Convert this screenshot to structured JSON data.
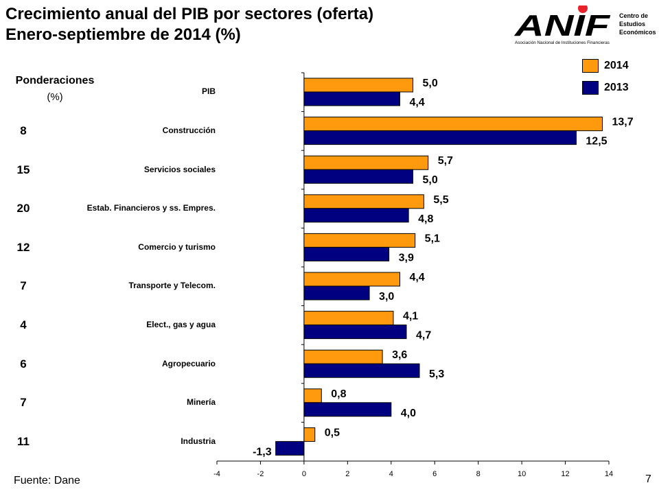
{
  "header": {
    "title_line1": "Crecimiento anual del PIB por sectores (oferta)",
    "title_line2": "Enero-septiembre de 2014 (%)"
  },
  "logo": {
    "mark": "ANIF",
    "org_line1": "Centro de",
    "org_line2": "Estudios",
    "org_line3": "Económicos",
    "org_full": "Asociación Nacional de Instituciones Financieras",
    "dot_color": "#e8212b"
  },
  "weights": {
    "header_line1": "Ponderaciones",
    "header_line2": "(%)",
    "values": [
      "",
      "8",
      "15",
      "20",
      "12",
      "7",
      "4",
      "6",
      "7",
      "11"
    ]
  },
  "footer": {
    "source": "Fuente: Dane",
    "page_number": "7"
  },
  "chart_data": {
    "type": "bar",
    "orientation": "horizontal",
    "categories": [
      "PIB",
      "Construcción",
      "Servicios sociales",
      "Estab. Financieros y ss. Empres.",
      "Comercio y turismo",
      "Transporte y Telecom.",
      "Elect., gas y agua",
      "Agropecuario",
      "Minería",
      "Industria"
    ],
    "series": [
      {
        "name": "2014",
        "color": "#ff9a0f",
        "values": [
          5.0,
          13.7,
          5.7,
          5.5,
          5.1,
          4.4,
          4.1,
          3.6,
          0.8,
          0.5
        ],
        "labels": [
          "5,0",
          "13,7",
          "5,7",
          "5,5",
          "5,1",
          "4,4",
          "4,1",
          "3,6",
          "0,8",
          "0,5"
        ]
      },
      {
        "name": "2013",
        "color": "#000080",
        "values": [
          4.4,
          12.5,
          5.0,
          4.8,
          3.9,
          3.0,
          4.7,
          5.3,
          4.0,
          -1.3
        ],
        "labels": [
          "4,4",
          "12,5",
          "5,0",
          "4,8",
          "3,9",
          "3,0",
          "4,7",
          "5,3",
          "4,0",
          "-1,3"
        ]
      }
    ],
    "xlim": [
      -4,
      14
    ],
    "xticks": [
      "-4",
      "-2",
      "0",
      "2",
      "4",
      "6",
      "8",
      "10",
      "12",
      "14"
    ],
    "grid": false,
    "legend_position": "top-right"
  }
}
